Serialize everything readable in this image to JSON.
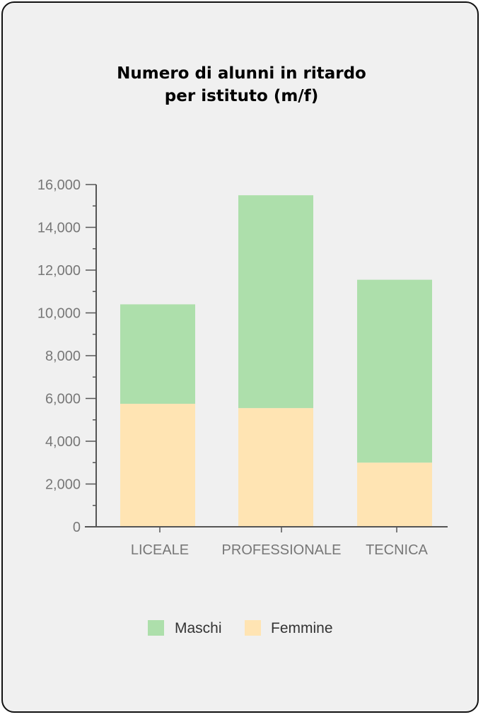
{
  "chart_data": {
    "type": "bar",
    "stacked": true,
    "title_lines": [
      "Numero di alunni in ritardo",
      "per istituto (m/f)"
    ],
    "categories": [
      "LICEALE",
      "PROFESSIONALE",
      "TECNICA"
    ],
    "series": [
      {
        "name": "Femmine",
        "values": [
          5750,
          5550,
          3000
        ],
        "color": "#ffe4b3"
      },
      {
        "name": "Maschi",
        "values": [
          4650,
          9950,
          8550
        ],
        "color": "#addfab"
      }
    ],
    "ylim": [
      0,
      16000
    ],
    "y_ticks": [
      "0",
      "2,000",
      "4,000",
      "6,000",
      "8,000",
      "10,000",
      "12,000",
      "14,000",
      "16,000"
    ],
    "y_tick_values": [
      0,
      2000,
      4000,
      6000,
      8000,
      10000,
      12000,
      14000,
      16000
    ],
    "legend": [
      {
        "label": "Maschi",
        "color": "#addfab"
      },
      {
        "label": "Femmine",
        "color": "#ffe4b3"
      }
    ],
    "legend_position": "bottom",
    "grid": false,
    "axis_color": "#555555"
  }
}
